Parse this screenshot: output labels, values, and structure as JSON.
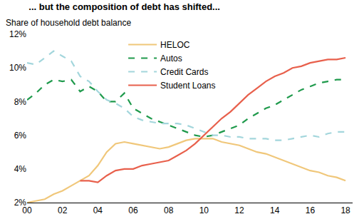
{
  "chart_data": {
    "type": "line",
    "title": "... but the composition of debt has shifted...",
    "ylabel": "Share of household debt balance",
    "x": [
      2000,
      2000.5,
      2001,
      2001.5,
      2002,
      2002.5,
      2003,
      2003.5,
      2004,
      2004.5,
      2005,
      2005.5,
      2006,
      2006.5,
      2007,
      2007.5,
      2008,
      2008.5,
      2009,
      2009.5,
      2010,
      2010.5,
      2011,
      2011.5,
      2012,
      2012.5,
      2013,
      2013.5,
      2014,
      2014.5,
      2015,
      2015.5,
      2016,
      2016.5,
      2017,
      2017.5,
      2018
    ],
    "series": [
      {
        "name": "HELOC",
        "color": "#f0c77a",
        "line_style": "solid",
        "values": [
          2.0,
          2.1,
          2.2,
          2.5,
          2.7,
          3.0,
          3.3,
          3.6,
          4.2,
          5.0,
          5.5,
          5.6,
          5.5,
          5.4,
          5.3,
          5.2,
          5.3,
          5.5,
          5.7,
          5.8,
          5.8,
          5.8,
          5.6,
          5.5,
          5.4,
          5.2,
          5.0,
          4.9,
          4.7,
          4.5,
          4.3,
          4.1,
          3.9,
          3.8,
          3.6,
          3.5,
          3.3
        ]
      },
      {
        "name": "Autos",
        "color": "#1f9a4c",
        "line_style": "dash",
        "values": [
          8.1,
          8.5,
          9.0,
          9.3,
          9.2,
          9.3,
          8.6,
          8.9,
          8.6,
          8.0,
          8.0,
          8.5,
          7.6,
          7.3,
          7.0,
          6.8,
          6.6,
          6.4,
          6.2,
          6.0,
          5.9,
          6.0,
          6.2,
          6.4,
          6.6,
          7.0,
          7.3,
          7.6,
          7.8,
          8.1,
          8.4,
          8.7,
          8.9,
          9.1,
          9.2,
          9.3,
          9.3
        ]
      },
      {
        "name": "Credit Cards",
        "color": "#a3d6dc",
        "line_style": "dash",
        "values": [
          10.3,
          10.2,
          10.6,
          11.0,
          10.7,
          10.4,
          9.5,
          9.2,
          8.6,
          8.1,
          7.9,
          7.6,
          7.1,
          6.9,
          6.8,
          6.7,
          6.7,
          6.7,
          6.6,
          6.4,
          6.2,
          6.0,
          6.0,
          5.9,
          5.9,
          5.8,
          5.8,
          5.8,
          5.7,
          5.7,
          5.8,
          5.9,
          6.0,
          5.9,
          6.1,
          6.2,
          6.2
        ]
      },
      {
        "name": "Student Loans",
        "color": "#e8604c",
        "line_style": "solid",
        "values": [
          null,
          null,
          null,
          null,
          null,
          null,
          3.3,
          3.3,
          3.2,
          3.6,
          3.9,
          4.0,
          4.0,
          4.2,
          4.3,
          4.4,
          4.5,
          4.8,
          5.1,
          5.5,
          6.0,
          6.5,
          7.0,
          7.4,
          7.9,
          8.4,
          8.8,
          9.2,
          9.5,
          9.7,
          10.0,
          10.1,
          10.3,
          10.4,
          10.5,
          10.5,
          10.6
        ]
      }
    ],
    "xlim": [
      2000,
      2018.4
    ],
    "xticks": [
      {
        "value": 2000,
        "label": "00"
      },
      {
        "value": 2002,
        "label": "02"
      },
      {
        "value": 2004,
        "label": "04"
      },
      {
        "value": 2006,
        "label": "06"
      },
      {
        "value": 2008,
        "label": "08"
      },
      {
        "value": 2010,
        "label": "10"
      },
      {
        "value": 2012,
        "label": "12"
      },
      {
        "value": 2014,
        "label": "14"
      },
      {
        "value": 2016,
        "label": "16"
      },
      {
        "value": 2018,
        "label": "18"
      }
    ],
    "ylim": [
      2,
      12
    ],
    "yticks": [
      {
        "value": 2,
        "label": "2%"
      },
      {
        "value": 4,
        "label": "4%"
      },
      {
        "value": 6,
        "label": "6%"
      },
      {
        "value": 8,
        "label": "8%"
      },
      {
        "value": 10,
        "label": "10%"
      },
      {
        "value": 12,
        "label": "12%"
      }
    ],
    "grid": false,
    "legend": "top"
  }
}
